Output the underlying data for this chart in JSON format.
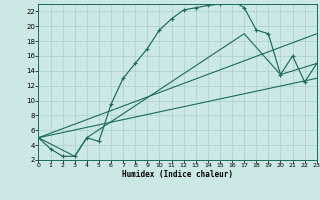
{
  "xlabel": "Humidex (Indice chaleur)",
  "bg_color": "#cce8e4",
  "grid_color": "#aad0cc",
  "line_color": "#1a6b5a",
  "xlim": [
    0,
    23
  ],
  "ylim": [
    2,
    23
  ],
  "yticks": [
    2,
    4,
    6,
    8,
    10,
    12,
    14,
    16,
    18,
    20,
    22
  ],
  "xticks": [
    0,
    1,
    2,
    3,
    4,
    5,
    6,
    7,
    8,
    9,
    10,
    11,
    12,
    13,
    14,
    15,
    16,
    17,
    18,
    19,
    20,
    21,
    22,
    23
  ],
  "main_x": [
    0,
    1,
    2,
    3,
    4,
    5,
    6,
    7,
    8,
    9,
    10,
    11,
    12,
    13,
    14,
    15,
    16,
    17,
    18,
    19,
    20,
    21,
    22,
    23
  ],
  "main_y": [
    5,
    3.5,
    2.5,
    2.5,
    5,
    4.5,
    9.5,
    13,
    15,
    17,
    19.5,
    21,
    22.2,
    22.5,
    22.8,
    23,
    23.5,
    22.5,
    19.5,
    19,
    13.5,
    16,
    12.5,
    15
  ],
  "line1_x": [
    0,
    23
  ],
  "line1_y": [
    5,
    19
  ],
  "line2_x": [
    0,
    23
  ],
  "line2_y": [
    5,
    13
  ],
  "env_x": [
    0,
    3,
    4,
    17,
    20,
    21,
    23
  ],
  "env_y": [
    5,
    2.5,
    5,
    19,
    13.5,
    14,
    15
  ]
}
